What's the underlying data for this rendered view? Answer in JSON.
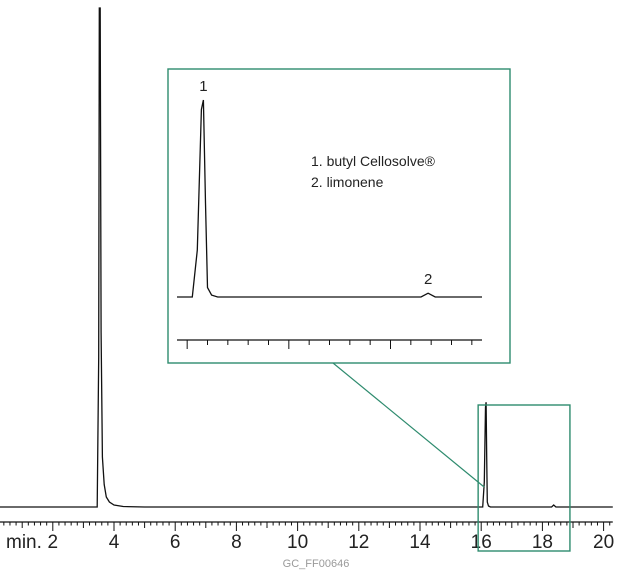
{
  "chart_data": {
    "type": "line",
    "title": "",
    "xlabel": "min.",
    "ylabel": "",
    "xlim": [
      0.1,
      20.3
    ],
    "grid": false,
    "x_ticks": [
      2,
      4,
      6,
      8,
      10,
      12,
      14,
      16,
      18,
      20
    ],
    "x_tick_labels": [
      "2",
      "4",
      "6",
      "8",
      "10",
      "12",
      "14",
      "16",
      "18",
      "20"
    ],
    "series": [
      {
        "type": "line",
        "x": [
          0.1,
          3.45,
          3.5,
          3.52,
          3.55,
          3.58,
          3.62,
          3.68,
          3.75,
          3.85,
          4.0,
          4.3,
          5.0,
          8.0,
          12.0,
          15.9,
          16.05,
          16.1,
          16.14,
          16.16,
          16.18,
          16.2,
          16.24,
          16.3,
          16.45,
          17.0,
          18.3,
          18.37,
          18.44,
          18.6,
          20.3
        ],
        "y": [
          0.0,
          0.0,
          0.3,
          1.0,
          1.0,
          0.35,
          0.1,
          0.045,
          0.02,
          0.01,
          0.004,
          0.001,
          0.0,
          0.0,
          0.0,
          0.0,
          0.0,
          0.05,
          0.2,
          0.21,
          0.1,
          0.01,
          0.002,
          0.0,
          0.0,
          0.0,
          0.0,
          0.004,
          0.0,
          0.0,
          0.0
        ]
      }
    ],
    "peaks": [
      {
        "label": "1",
        "compound": "butyl Cellosolve®",
        "rt": 16.16
      },
      {
        "label": "2",
        "compound": "limonene",
        "rt": 18.37
      }
    ],
    "inset": {
      "xlim": [
        15.9,
        18.9
      ],
      "legend": [
        "1. butyl Cellosolve®",
        "2. limonene"
      ]
    },
    "accent_color": "#2e8b6e"
  },
  "footer": {
    "code": "GC_FF00646"
  }
}
